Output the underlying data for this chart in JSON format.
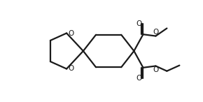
{
  "bg_color": "#ffffff",
  "line_color": "#1a1a1a",
  "line_width": 1.6,
  "figsize": [
    2.9,
    1.46
  ],
  "dpi": 100,
  "xlim": [
    0,
    10
  ],
  "ylim": [
    0,
    5
  ],
  "O_fontsize": 7.5
}
